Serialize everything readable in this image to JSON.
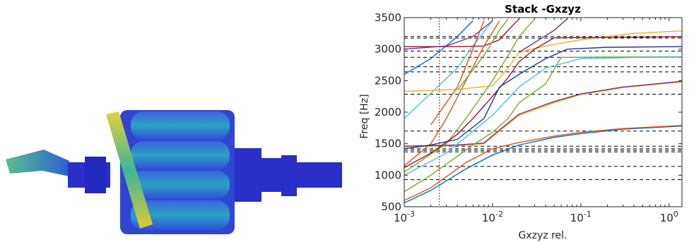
{
  "chart_data": {
    "type": "line",
    "title": "Stack -Gxzyz",
    "xlabel": "Gxzyz rel.",
    "ylabel": "Freq [Hz]",
    "x_scale": "log",
    "xlim": [
      0.001,
      1.4
    ],
    "ylim": [
      500,
      3500
    ],
    "grid": false,
    "x_ticks": [
      {
        "v": 0.001,
        "b": "10",
        "e": "-3"
      },
      {
        "v": 0.01,
        "b": "10",
        "e": "-2"
      },
      {
        "v": 0.1,
        "b": "10",
        "e": "-1"
      },
      {
        "v": 1,
        "b": "10",
        "e": "0"
      }
    ],
    "y_ticks": [
      500,
      1000,
      1500,
      2000,
      2500,
      3000,
      3500
    ],
    "reference_lines": [
      930,
      1140,
      1370,
      1395,
      1420,
      1460,
      1700,
      2285,
      2640,
      2720,
      2870,
      2970,
      3175,
      3200
    ],
    "vertical_marker": 0.0025,
    "series": [
      {
        "color": "#0072BD",
        "points": [
          [
            0.001,
            560
          ],
          [
            0.002,
            760
          ],
          [
            0.005,
            1100
          ],
          [
            0.01,
            1320
          ],
          [
            0.02,
            1480
          ],
          [
            0.05,
            1600
          ],
          [
            0.1,
            1660
          ],
          [
            0.3,
            1730
          ],
          [
            1.4,
            1780
          ]
        ]
      },
      {
        "color": "#D95319",
        "points": [
          [
            0.001,
            600
          ],
          [
            0.002,
            800
          ],
          [
            0.005,
            1200
          ],
          [
            0.01,
            1420
          ],
          [
            0.02,
            1520
          ],
          [
            0.05,
            1620
          ],
          [
            0.1,
            1680
          ],
          [
            0.3,
            1740
          ],
          [
            1.4,
            1790
          ]
        ]
      },
      {
        "color": "#EDB120",
        "points": [
          [
            0.001,
            1450
          ],
          [
            0.004,
            1470
          ],
          [
            0.008,
            1500
          ],
          [
            0.012,
            1700
          ],
          [
            0.02,
            1950
          ],
          [
            0.05,
            2150
          ],
          [
            0.1,
            2280
          ],
          [
            0.3,
            2390
          ],
          [
            1.4,
            2480
          ]
        ]
      },
      {
        "color": "#7E2F8E",
        "points": [
          [
            0.001,
            1460
          ],
          [
            0.004,
            1480
          ],
          [
            0.008,
            1510
          ],
          [
            0.012,
            1720
          ],
          [
            0.02,
            1970
          ],
          [
            0.05,
            2170
          ],
          [
            0.1,
            2290
          ],
          [
            0.3,
            2400
          ],
          [
            1.4,
            2490
          ]
        ]
      },
      {
        "color": "#77AC30",
        "points": [
          [
            0.001,
            740
          ],
          [
            0.002,
            1000
          ],
          [
            0.004,
            1300
          ],
          [
            0.006,
            1480
          ],
          [
            0.01,
            1680
          ],
          [
            0.015,
            1900
          ],
          [
            0.02,
            2150
          ],
          [
            0.04,
            2450
          ],
          [
            0.06,
            2870
          ],
          [
            0.2,
            2875
          ],
          [
            1.4,
            2880
          ]
        ]
      },
      {
        "color": "#4DBEEE",
        "points": [
          [
            0.001,
            1900
          ],
          [
            0.002,
            2300
          ],
          [
            0.004,
            2700
          ],
          [
            0.006,
            3050
          ],
          [
            0.01,
            3450
          ]
        ]
      },
      {
        "color": "#A2142F",
        "points": [
          [
            0.001,
            3040
          ],
          [
            0.004,
            3040
          ],
          [
            0.008,
            3050
          ],
          [
            0.012,
            3150
          ],
          [
            0.015,
            3300
          ],
          [
            0.02,
            3480
          ]
        ]
      },
      {
        "color": "#0072BD",
        "points": [
          [
            0.001,
            2600
          ],
          [
            0.002,
            2850
          ],
          [
            0.004,
            3200
          ],
          [
            0.006,
            3450
          ]
        ]
      },
      {
        "color": "#D95319",
        "points": [
          [
            0.001,
            1150
          ],
          [
            0.002,
            1500
          ],
          [
            0.003,
            1900
          ],
          [
            0.005,
            2500
          ],
          [
            0.008,
            3050
          ],
          [
            0.012,
            3450
          ]
        ]
      },
      {
        "color": "#EDB120",
        "points": [
          [
            0.001,
            2330
          ],
          [
            0.004,
            2360
          ],
          [
            0.01,
            2420
          ],
          [
            0.015,
            2700
          ],
          [
            0.02,
            2950
          ],
          [
            0.04,
            3050
          ],
          [
            0.1,
            3150
          ],
          [
            0.4,
            3250
          ],
          [
            1.4,
            3290
          ]
        ]
      },
      {
        "color": "#7E2F8E",
        "points": [
          [
            0.001,
            3000
          ],
          [
            0.003,
            3050
          ],
          [
            0.006,
            3200
          ],
          [
            0.01,
            3450
          ]
        ]
      },
      {
        "color": "#77AC30",
        "points": [
          [
            0.001,
            1050
          ],
          [
            0.003,
            1500
          ],
          [
            0.005,
            1900
          ],
          [
            0.01,
            2500
          ],
          [
            0.015,
            2900
          ],
          [
            0.02,
            3200
          ],
          [
            0.03,
            3480
          ]
        ]
      },
      {
        "color": "#4DBEEE",
        "points": [
          [
            0.001,
            1000
          ],
          [
            0.003,
            1350
          ],
          [
            0.006,
            1700
          ],
          [
            0.01,
            1950
          ],
          [
            0.02,
            2400
          ],
          [
            0.04,
            2700
          ],
          [
            0.1,
            2850
          ],
          [
            0.5,
            2870
          ],
          [
            1.4,
            2875
          ]
        ]
      },
      {
        "color": "#A2142F",
        "points": [
          [
            0.001,
            1120
          ],
          [
            0.002,
            1350
          ],
          [
            0.004,
            1650
          ],
          [
            0.006,
            1900
          ],
          [
            0.01,
            2250
          ],
          [
            0.015,
            2550
          ],
          [
            0.02,
            2800
          ],
          [
            0.03,
            3000
          ],
          [
            0.05,
            3180
          ],
          [
            0.5,
            3190
          ],
          [
            1.4,
            3195
          ]
        ]
      },
      {
        "color": "#1F3A93",
        "points": [
          [
            0.001,
            1420
          ],
          [
            0.002,
            1480
          ],
          [
            0.004,
            1570
          ],
          [
            0.008,
            1900
          ],
          [
            0.012,
            2400
          ],
          [
            0.02,
            2600
          ],
          [
            0.04,
            2850
          ],
          [
            0.07,
            3000
          ],
          [
            0.2,
            3030
          ],
          [
            1.4,
            3040
          ]
        ]
      },
      {
        "color": "#D95319",
        "points": [
          [
            0.002,
            1800
          ],
          [
            0.004,
            2400
          ],
          [
            0.006,
            3000
          ],
          [
            0.008,
            3450
          ]
        ]
      },
      {
        "color": "#7E2F8E",
        "points": [
          [
            0.02,
            2950
          ],
          [
            0.05,
            3300
          ],
          [
            0.07,
            3480
          ]
        ]
      },
      {
        "color": "#77AC30",
        "points": [
          [
            0.004,
            2350
          ],
          [
            0.008,
            2900
          ],
          [
            0.012,
            3300
          ],
          [
            0.015,
            3480
          ]
        ]
      }
    ]
  }
}
